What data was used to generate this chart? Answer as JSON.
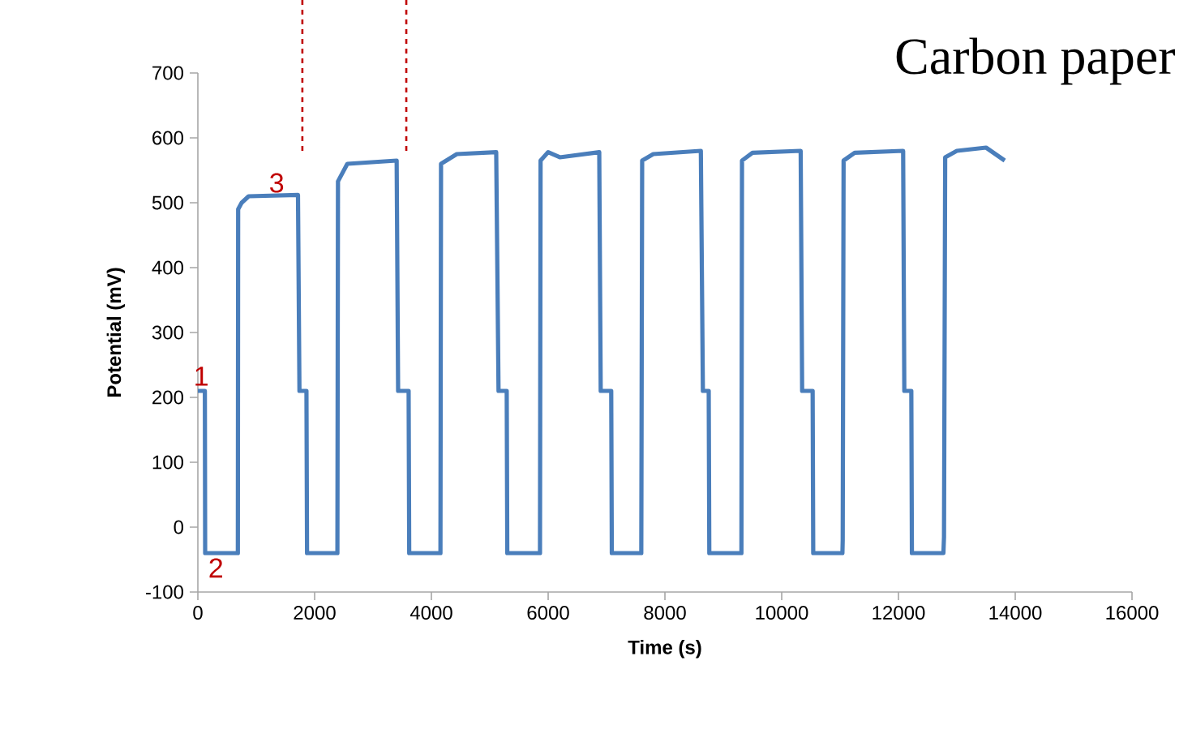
{
  "chart_data": {
    "type": "line",
    "xlabel": "Time (s)",
    "ylabel": "Potential (mV)",
    "xlim": [
      0,
      16000
    ],
    "ylim": [
      -100,
      700
    ],
    "xticks": [
      0,
      2000,
      4000,
      6000,
      8000,
      10000,
      12000,
      14000,
      16000
    ],
    "yticks": [
      -100,
      0,
      100,
      200,
      300,
      400,
      500,
      600,
      700
    ],
    "grid": false,
    "marker": "none",
    "line_style": "solid",
    "series": [
      {
        "color": "#4a7ebb",
        "x": [
          0,
          120,
          125,
          685,
          690,
          750,
          870,
          1715,
          1740,
          1860,
          1870,
          2390,
          2400,
          2560,
          3405,
          3430,
          3610,
          3620,
          4155,
          4165,
          4435,
          5110,
          5150,
          5290,
          5300,
          5860,
          5870,
          6000,
          6200,
          6875,
          6900,
          7080,
          7090,
          7595,
          7610,
          7800,
          8615,
          8650,
          8750,
          8760,
          9310,
          9320,
          9500,
          10325,
          10350,
          10530,
          10540,
          11040,
          11045,
          11060,
          11250,
          12080,
          12100,
          12220,
          12230,
          12770,
          12780,
          12800,
          13000,
          13500,
          13820
        ],
        "values": [
          210,
          210,
          -40,
          -40,
          490,
          500,
          510,
          512,
          210,
          210,
          -40,
          -40,
          533,
          560,
          565,
          210,
          210,
          -40,
          -40,
          560,
          575,
          578,
          210,
          210,
          -40,
          -40,
          565,
          578,
          570,
          578,
          210,
          210,
          -40,
          -40,
          565,
          575,
          580,
          210,
          210,
          -40,
          -40,
          565,
          577,
          580,
          210,
          210,
          -40,
          -40,
          -20,
          565,
          577,
          580,
          210,
          210,
          -40,
          -40,
          -15,
          570,
          580,
          585,
          565
        ]
      }
    ],
    "ref_lines": [
      {
        "axis": "x",
        "value": 1790,
        "color": "#c00000",
        "line_style": "dashed"
      },
      {
        "axis": "x",
        "value": 3570,
        "color": "#c00000",
        "line_style": "dashed"
      }
    ],
    "annotations": [
      {
        "text": "1",
        "x": 0,
        "y": 210
      },
      {
        "text": "2",
        "x": 200,
        "y": -40
      },
      {
        "text": "3",
        "x": 1350,
        "y": 510
      },
      "Carbon paper"
    ]
  }
}
